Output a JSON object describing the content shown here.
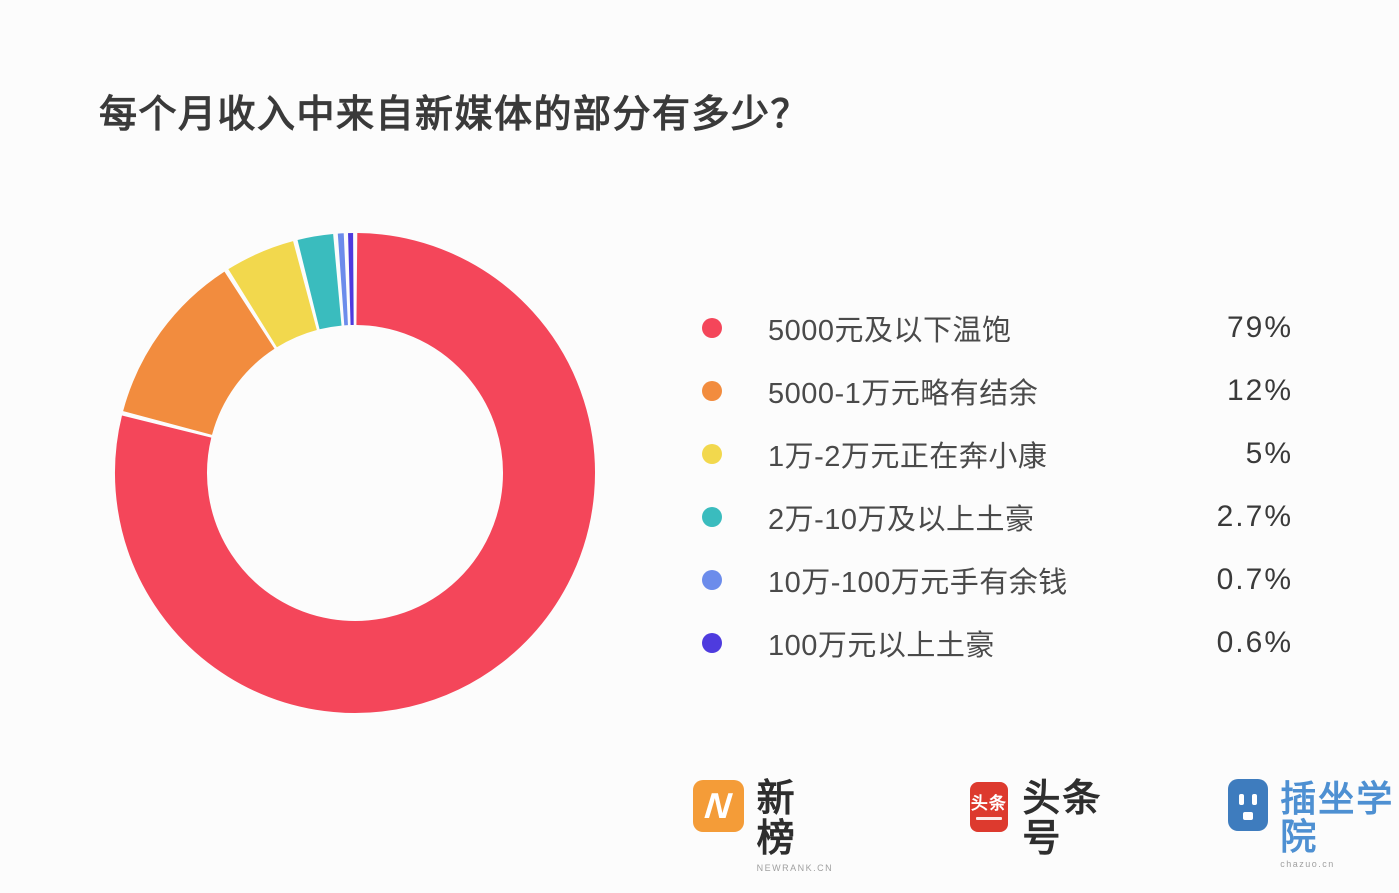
{
  "title": "每个月收入中来自新媒体的部分有多少？",
  "chart_data": {
    "type": "pie",
    "donut": true,
    "title": "每个月收入中来自新媒体的部分有多少？",
    "categories": [
      "5000元及以下温饱",
      "5000-1万元略有结余",
      "1万-2万元正在奔小康",
      "2万-10万及以上土豪",
      "10万-100万元手有余钱",
      "100万元以上土豪"
    ],
    "values": [
      79,
      12,
      5,
      2.7,
      0.7,
      0.6
    ],
    "value_labels": [
      "79%",
      "12%",
      "5%",
      "2.7%",
      "0.7%",
      "0.6%"
    ],
    "colors": [
      "#F4465A",
      "#F28C3E",
      "#F2D84D",
      "#3ABCBE",
      "#6C8CEB",
      "#4E3BDE"
    ],
    "start_angle_deg": 0,
    "direction": "clockwise",
    "legend_position": "right"
  },
  "footer": {
    "logos": [
      {
        "mark": "N",
        "name": "新榜",
        "subtext": "NEWRANK.CN",
        "color": "#F49C38"
      },
      {
        "mark": "头条",
        "name": "头条号",
        "color": "#DD3A2E"
      },
      {
        "name": "插坐学院",
        "subtext": "chazuo.cn",
        "color": "#3E7CBE",
        "text_color": "#4E90D2"
      }
    ]
  }
}
